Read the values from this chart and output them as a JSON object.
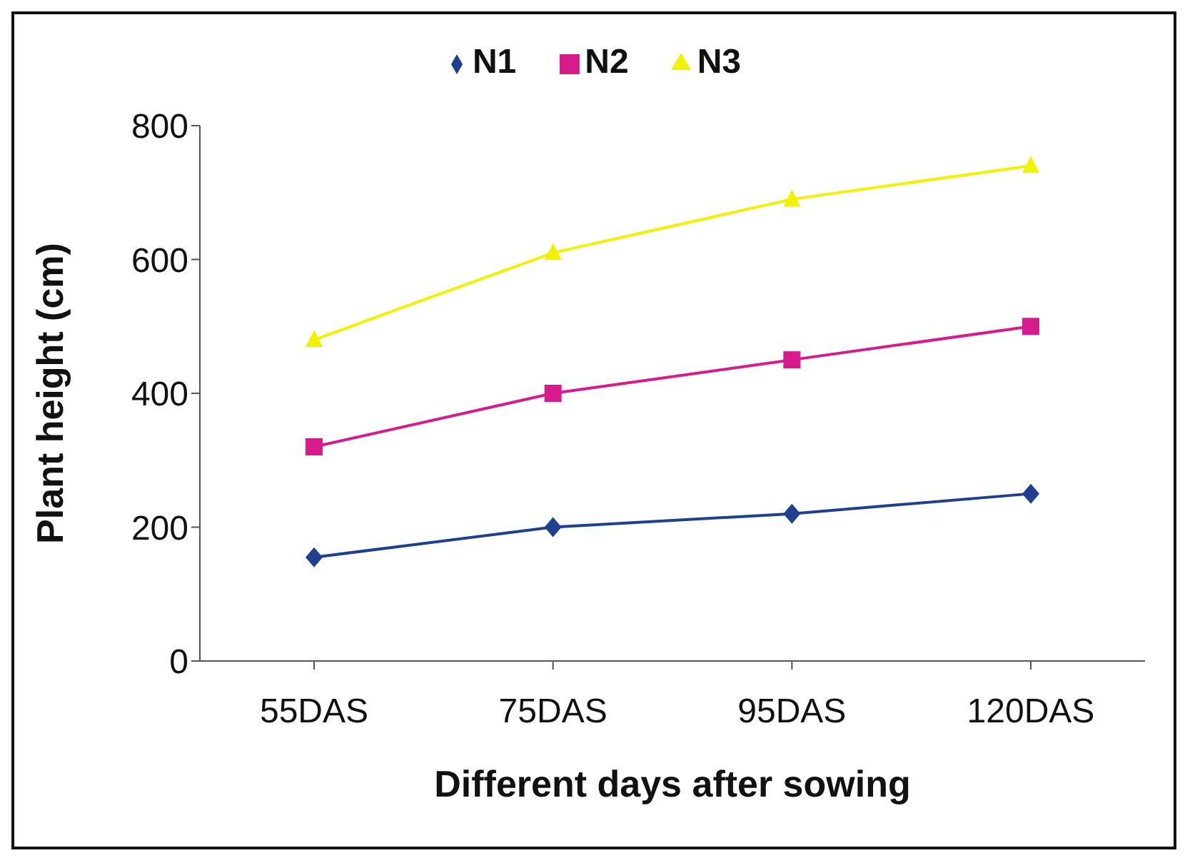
{
  "chart_data": {
    "type": "line",
    "xlabel": "Different days after sowing",
    "ylabel": "Plant height (cm)",
    "categories": [
      "55DAS",
      "75DAS",
      "95DAS",
      "120DAS"
    ],
    "series": [
      {
        "name": "N1",
        "color": "#1f3f8f",
        "marker": "diamond",
        "values": [
          155,
          200,
          220,
          250
        ]
      },
      {
        "name": "N2",
        "color": "#d81b8c",
        "marker": "square",
        "values": [
          320,
          400,
          450,
          500
        ]
      },
      {
        "name": "N3",
        "color": "#f2f200",
        "marker": "triangle",
        "values": [
          480,
          610,
          690,
          740
        ]
      }
    ],
    "ylim": [
      0,
      800
    ],
    "yticks": [
      0,
      200,
      400,
      600,
      800
    ],
    "grid": false,
    "legend": "top",
    "line_style": "solid"
  }
}
